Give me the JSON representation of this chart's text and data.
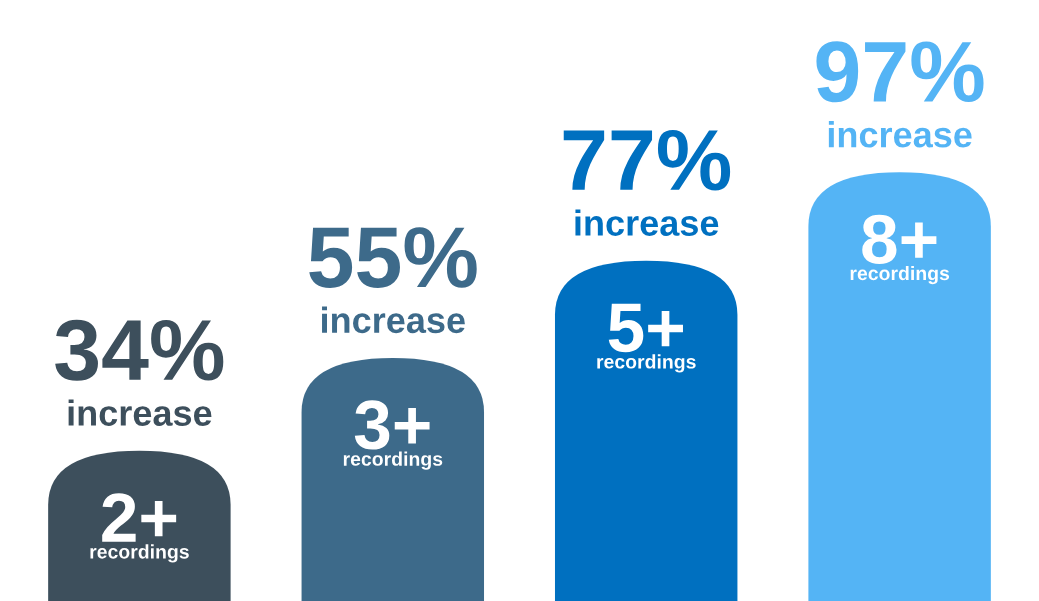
{
  "chart_data": {
    "type": "bar",
    "categories": [
      "2+\nrecordings",
      "3+\nrecordings",
      "5+\nrecordings",
      "8+\nrecordings"
    ],
    "values": [
      34,
      55,
      77,
      97
    ],
    "value_labels": [
      "34%\nincrease",
      "55%\nincrease",
      "77%\nincrease",
      "97%\nincrease"
    ],
    "colors": [
      "#3d4f5c",
      "#3d6a8a",
      "#0070c0",
      "#54b4f5"
    ],
    "ylim": [
      0,
      136
    ]
  }
}
